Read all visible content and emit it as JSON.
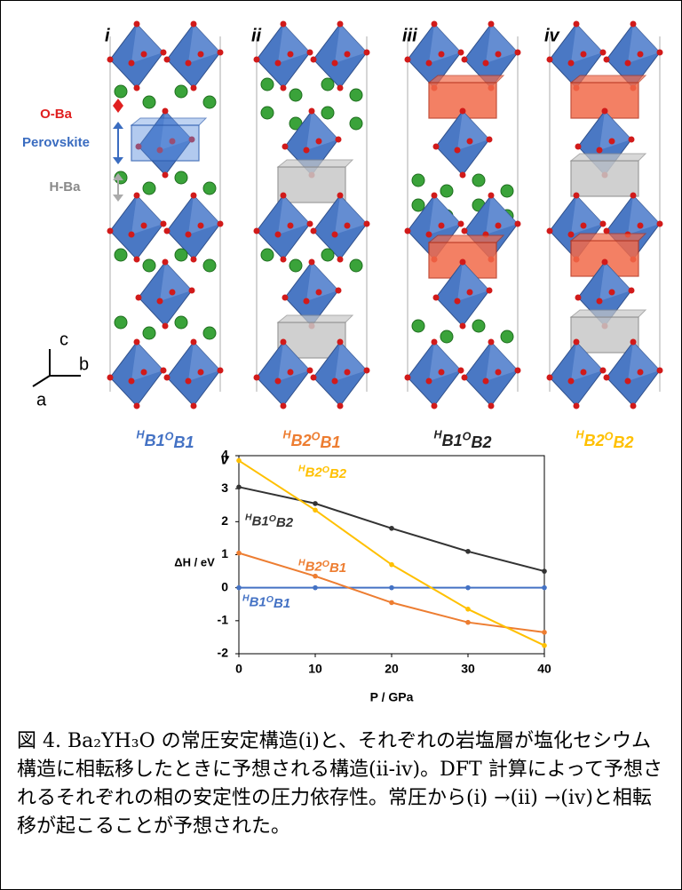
{
  "structures": [
    {
      "numeral": "i",
      "name": "HB1OB1",
      "color": "#4472c4"
    },
    {
      "numeral": "ii",
      "name": "HB2OB1",
      "color": "#ed7d31"
    },
    {
      "numeral": "iii",
      "name": "HB1OB2",
      "color": "#222222"
    },
    {
      "numeral": "iv",
      "name": "HB2OB2",
      "color": "#ffc000"
    }
  ],
  "annotations": {
    "o_ba": "O-Ba",
    "perovskite": "Perovskite",
    "h_ba": "H-Ba",
    "axis_c": "c",
    "axis_b": "b",
    "axis_a": "a"
  },
  "chart_data": {
    "type": "line",
    "title": "v",
    "x_label": "P / GPa",
    "y_label": "ΔH / eV",
    "x": [
      0,
      10,
      20,
      30,
      40
    ],
    "xlim": [
      0,
      40
    ],
    "xticks": [
      0,
      10,
      20,
      30,
      40
    ],
    "ylim": [
      -2,
      4
    ],
    "yticks": [
      -2,
      -1,
      0,
      1,
      2,
      3,
      4
    ],
    "series": [
      {
        "name": "HB1OB1",
        "color": "#4472c4",
        "values": [
          0,
          0,
          0,
          0,
          0
        ]
      },
      {
        "name": "HB2OB1",
        "color": "#ed7d31",
        "values": [
          1.05,
          0.35,
          -0.45,
          -1.05,
          -1.35
        ]
      },
      {
        "name": "HB1OB2",
        "color": "#333333",
        "values": [
          3.05,
          2.55,
          1.8,
          1.1,
          0.5
        ]
      },
      {
        "name": "HB2OB2",
        "color": "#ffc000",
        "values": [
          3.85,
          2.35,
          0.7,
          -0.65,
          -1.75
        ]
      }
    ]
  },
  "caption": "図 4. Ba₂YH₃O の常圧安定構造(i)と、それぞれの岩塩層が塩化セシウム構造に相転移したときに予想される構造(ii-iv)。DFT 計算によって予想されるそれぞれの相の安定性の圧力依存性。常圧から(i) →(ii) →(iv)と相転移が起こることが予想された。"
}
